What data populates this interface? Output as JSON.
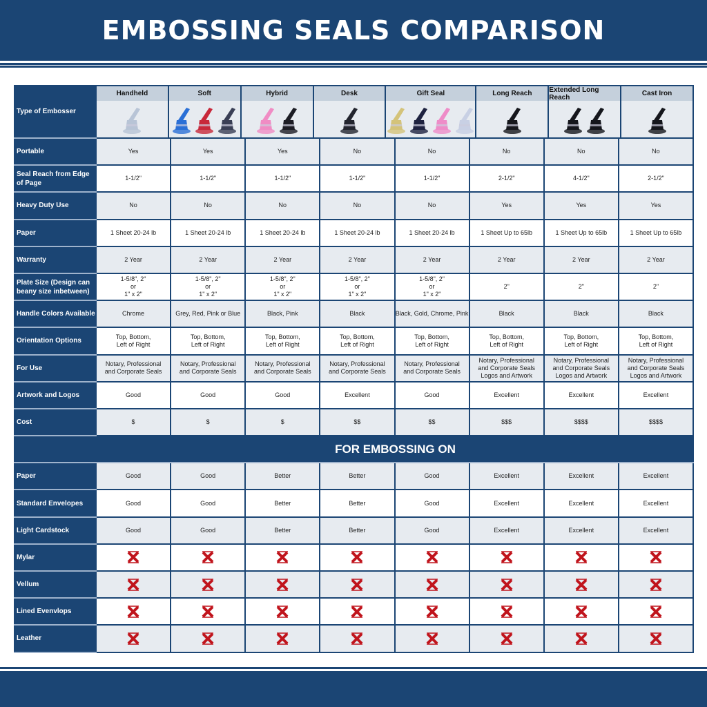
{
  "title": "EMBOSSING SEALS COMPARISON",
  "colors": {
    "navy": "#1b4574",
    "cross": "#c0141c",
    "row_gray": "#e7ebf0"
  },
  "type_label": "Type of Embosser",
  "columns": [
    {
      "name": "Handheld",
      "image_colors": [
        "#b8c4d6"
      ]
    },
    {
      "name": "Soft",
      "image_colors": [
        "#2a6fd6",
        "#c8283a",
        "#3a3f55"
      ]
    },
    {
      "name": "Hybrid",
      "image_colors": [
        "#f08cc4",
        "#1c1c24"
      ]
    },
    {
      "name": "Desk",
      "image_colors": [
        "#22242e"
      ]
    },
    {
      "name": "Gift Seal",
      "image_colors": [
        "#d4c37a",
        "#1e2240",
        "#ee8cc8",
        "#c8d0e4"
      ]
    },
    {
      "name": "Long Reach",
      "image_colors": [
        "#15161c"
      ]
    },
    {
      "name": "Extended Long Reach",
      "image_colors": [
        "#15161c",
        "#15161c"
      ]
    },
    {
      "name": "Cast Iron",
      "image_colors": [
        "#15161c"
      ]
    }
  ],
  "rows": [
    {
      "label": "Portable",
      "values": [
        "Yes",
        "Yes",
        "Yes",
        "No",
        "No",
        "No",
        "No",
        "No"
      ]
    },
    {
      "label": "Seal Reach from Edge of Page",
      "values": [
        "1-1/2\"",
        "1-1/2\"",
        "1-1/2\"",
        "1-1/2\"",
        "1-1/2\"",
        "2-1/2\"",
        "4-1/2\"",
        "2-1/2\""
      ]
    },
    {
      "label": "Heavy Duty Use",
      "values": [
        "No",
        "No",
        "No",
        "No",
        "No",
        "Yes",
        "Yes",
        "Yes"
      ]
    },
    {
      "label": "Paper",
      "values": [
        "1 Sheet 20-24 lb",
        "1 Sheet 20-24 lb",
        "1 Sheet 20-24 lb",
        "1 Sheet 20-24 lb",
        "1 Sheet 20-24 lb",
        "1 Sheet Up to 65lb",
        "1 Sheet Up to 65lb",
        "1 Sheet Up to 65lb"
      ]
    },
    {
      "label": "Warranty",
      "values": [
        "2 Year",
        "2 Year",
        "2 Year",
        "2 Year",
        "2 Year",
        "2 Year",
        "2 Year",
        "2 Year"
      ]
    },
    {
      "label": "Plate Size (Design can beany size inbetween)",
      "values": [
        "1-5/8\", 2\"\nor\n1\" x 2\"",
        "1-5/8\", 2\"\nor\n1\" x 2\"",
        "1-5/8\", 2\"\nor\n1\" x 2\"",
        "1-5/8\", 2\"\nor\n1\" x 2\"",
        "1-5/8\", 2\"\nor\n1\" x 2\"",
        "2\"",
        "2\"",
        "2\""
      ]
    },
    {
      "label": "Handle Colors Available",
      "values": [
        "Chrome",
        "Grey, Red, Pink or Blue",
        "Black, Pink",
        "Black",
        "Black, Gold, Chrome, Pink",
        "Black",
        "Black",
        "Black"
      ]
    },
    {
      "label": "Orientation Options",
      "values": [
        "Top, Bottom,\nLeft of Right",
        "Top, Bottom,\nLeft of Right",
        "Top, Bottom,\nLeft of Right",
        "Top, Bottom,\nLeft of Right",
        "Top, Bottom,\nLeft of Right",
        "Top, Bottom,\nLeft of Right",
        "Top, Bottom,\nLeft of Right",
        "Top, Bottom,\nLeft of Right"
      ]
    },
    {
      "label": "For Use",
      "values": [
        "Notary, Professional\nand Corporate Seals",
        "Notary, Professional\nand Corporate Seals",
        "Notary, Professional\nand Corporate Seals",
        "Notary, Professional\nand Corporate Seals",
        "Notary, Professional\nand Corporate Seals",
        "Notary, Professional\nand Corporate Seals\nLogos and Artwork",
        "Notary, Professional\nand Corporate Seals\nLogos and Artwork",
        "Notary, Professional\nand Corporate Seals\nLogos and Artwork"
      ]
    },
    {
      "label": "Artwork and Logos",
      "values": [
        "Good",
        "Good",
        "Good",
        "Excellent",
        "Good",
        "Excellent",
        "Excellent",
        "Excellent"
      ]
    },
    {
      "label": "Cost",
      "values": [
        "$",
        "$",
        "$",
        "$$",
        "$$",
        "$$$",
        "$$$$",
        "$$$$"
      ]
    }
  ],
  "section_title": "FOR EMBOSSING ON",
  "embossing_rows": [
    {
      "label": "Paper",
      "values": [
        "Good",
        "Good",
        "Better",
        "Better",
        "Good",
        "Excellent",
        "Excellent",
        "Excellent"
      ]
    },
    {
      "label": "Standard Envelopes",
      "values": [
        "Good",
        "Good",
        "Better",
        "Better",
        "Good",
        "Excellent",
        "Excellent",
        "Excellent"
      ]
    },
    {
      "label": "Light Cardstock",
      "values": [
        "Good",
        "Good",
        "Better",
        "Better",
        "Good",
        "Excellent",
        "Excellent",
        "Excellent"
      ]
    },
    {
      "label": "Mylar",
      "values": [
        "x-icon",
        "x-icon",
        "x-icon",
        "x-icon",
        "x-icon",
        "x-icon",
        "x-icon",
        "x-icon"
      ]
    },
    {
      "label": "Vellum",
      "values": [
        "x-icon",
        "x-icon",
        "x-icon",
        "x-icon",
        "x-icon",
        "x-icon",
        "x-icon",
        "x-icon"
      ]
    },
    {
      "label": "Lined Evenvlops",
      "values": [
        "x-icon",
        "x-icon",
        "x-icon",
        "x-icon",
        "x-icon",
        "x-icon",
        "x-icon",
        "x-icon"
      ]
    },
    {
      "label": "Leather",
      "values": [
        "x-icon",
        "x-icon",
        "x-icon",
        "x-icon",
        "x-icon",
        "x-icon",
        "x-icon",
        "x-icon"
      ]
    }
  ]
}
